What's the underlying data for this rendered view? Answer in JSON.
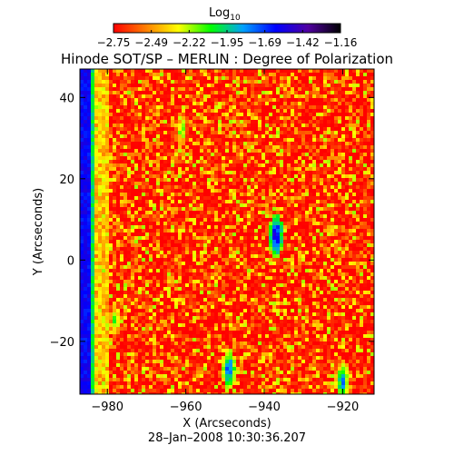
{
  "chart_data": {
    "type": "heatmap",
    "title": "Hinode SOT/SP – MERLIN : Degree of Polarization",
    "xlabel": "X (Arcseconds)",
    "ylabel": "Y (Arcseconds)",
    "footer": "28–Jan–2008 10:30:36.207",
    "colorbar": {
      "label_main": "Log",
      "label_sub": "10",
      "tick_labels": [
        "−2.75",
        "−2.49",
        "−2.22",
        "−1.95",
        "−1.69",
        "−1.42",
        "−1.16"
      ],
      "range": [
        -2.75,
        -1.16
      ],
      "colors": [
        "#ff0000",
        "#ff7f00",
        "#ffff00",
        "#00ff00",
        "#00a0ff",
        "#0000ff",
        "#5000a0",
        "#000000"
      ]
    },
    "xlim": [
      -987,
      -912
    ],
    "ylim": [
      -33,
      47
    ],
    "x_ticks": [
      -980,
      -960,
      -940,
      -920
    ],
    "x_tick_labels": [
      "−980",
      "−960",
      "−940",
      "−920"
    ],
    "y_ticks": [
      -20,
      0,
      20,
      40
    ],
    "y_tick_labels": [
      "−20",
      "0",
      "20",
      "40"
    ],
    "features": [
      {
        "name": "limb",
        "x_range": [
          -987,
          -984
        ],
        "value": -1.6
      },
      {
        "name": "limb-edge",
        "x_range": [
          -984,
          -983
        ],
        "value": -2.0
      },
      {
        "name": "bright-patch",
        "x": -937,
        "y": 6,
        "value": -1.4
      },
      {
        "name": "bright-patch",
        "x": -949,
        "y": -27,
        "value": -1.6
      },
      {
        "name": "bright-patch",
        "x": -978,
        "y": -15,
        "value": -2.0
      },
      {
        "name": "bright-patch",
        "x": -961,
        "y": 32,
        "value": -2.0
      },
      {
        "name": "bright-patch",
        "x": -920,
        "y": -30,
        "value": -1.7
      }
    ]
  }
}
